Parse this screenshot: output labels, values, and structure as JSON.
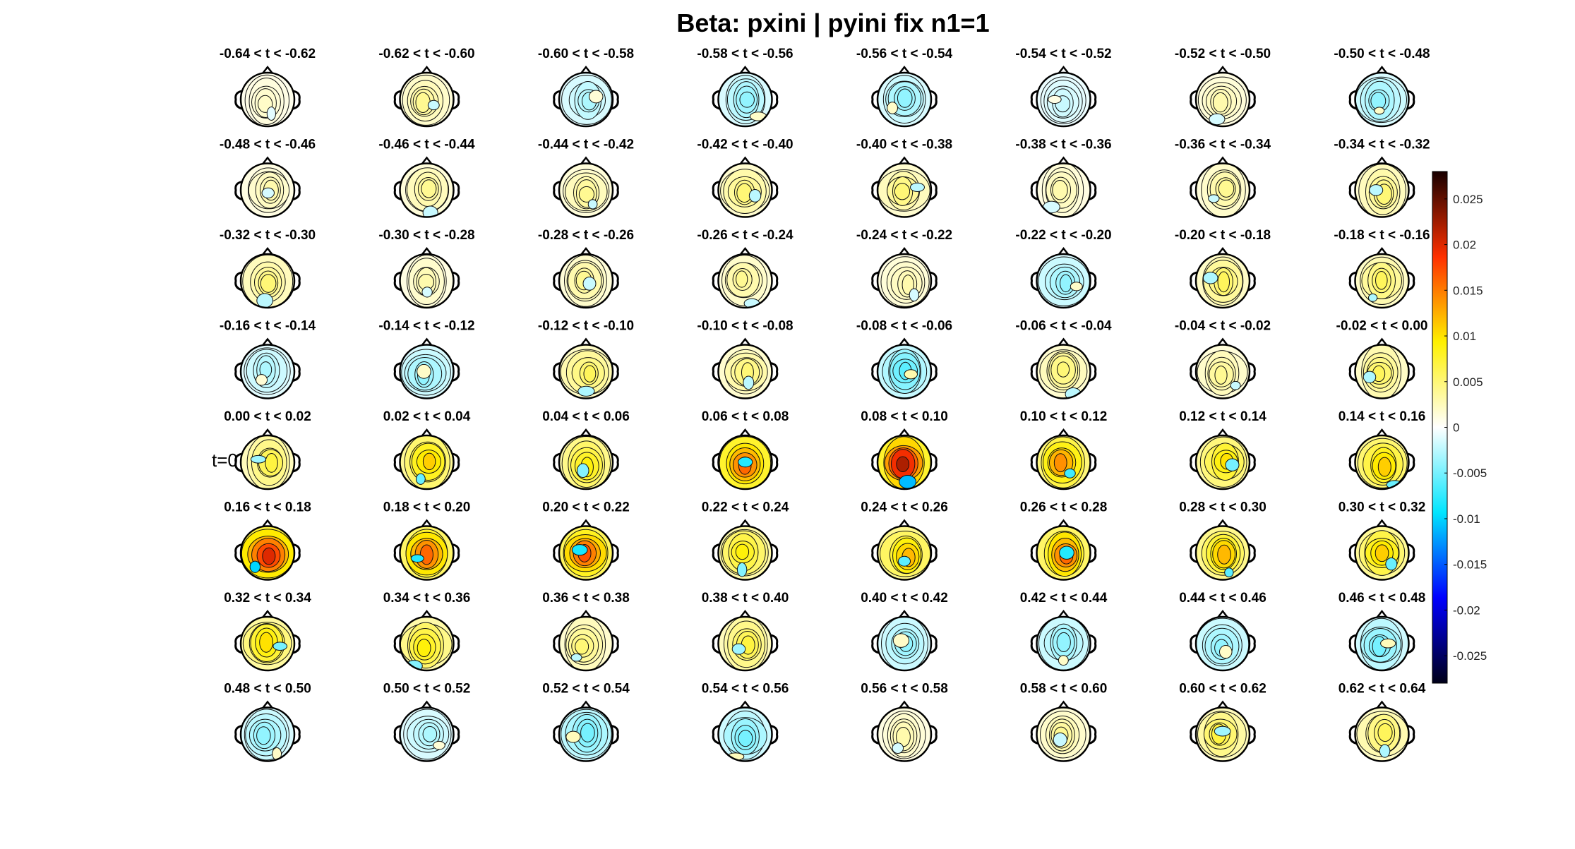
{
  "figure": {
    "title": "Beta: pxini | pyini fix  n1=1",
    "t0_label": "t=0"
  },
  "chart_data": {
    "type": "heatmap",
    "title": "Beta: pxini | pyini fix  n1=1",
    "grid_rows": 8,
    "grid_cols": 8,
    "panel_titles": [
      "-0.64 < t < -0.62",
      "-0.62 < t < -0.60",
      "-0.60 < t < -0.58",
      "-0.58 < t < -0.56",
      "-0.56 < t < -0.54",
      "-0.54 < t < -0.52",
      "-0.52 < t < -0.50",
      "-0.50 < t < -0.48",
      "-0.48 < t < -0.46",
      "-0.46 < t < -0.44",
      "-0.44 < t < -0.42",
      "-0.42 < t < -0.40",
      "-0.40 < t < -0.38",
      "-0.38 < t < -0.36",
      "-0.36 < t < -0.34",
      "-0.34 < t < -0.32",
      "-0.32 < t < -0.30",
      "-0.30 < t < -0.28",
      "-0.28 < t < -0.26",
      "-0.26 < t < -0.24",
      "-0.24 < t < -0.22",
      "-0.22 < t < -0.20",
      "-0.20 < t < -0.18",
      "-0.18 < t < -0.16",
      "-0.16 < t < -0.14",
      "-0.14 < t < -0.12",
      "-0.12 < t < -0.10",
      "-0.10 < t < -0.08",
      "-0.08 < t < -0.06",
      "-0.06 < t < -0.04",
      "-0.04 < t < -0.02",
      "-0.02 < t < 0.00",
      "0.00 < t < 0.02",
      "0.02 < t < 0.04",
      "0.04 < t < 0.06",
      "0.06 < t < 0.08",
      "0.08 < t < 0.10",
      "0.10 < t < 0.12",
      "0.12 < t < 0.14",
      "0.14 < t < 0.16",
      "0.16 < t < 0.18",
      "0.18 < t < 0.20",
      "0.20 < t < 0.22",
      "0.22 < t < 0.24",
      "0.24 < t < 0.26",
      "0.26 < t < 0.28",
      "0.28 < t < 0.30",
      "0.30 < t < 0.32",
      "0.32 < t < 0.34",
      "0.34 < t < 0.36",
      "0.36 < t < 0.38",
      "0.38 < t < 0.40",
      "0.40 < t < 0.42",
      "0.42 < t < 0.44",
      "0.44 < t < 0.46",
      "0.46 < t < 0.48",
      "0.48 < t < 0.50",
      "0.50 < t < 0.52",
      "0.52 < t < 0.54",
      "0.54 < t < 0.56",
      "0.56 < t < 0.58",
      "0.58 < t < 0.60",
      "0.60 < t < 0.62",
      "0.62 < t < 0.64"
    ],
    "peak_values": [
      0.002,
      0.004,
      -0.003,
      -0.004,
      -0.004,
      -0.002,
      0.003,
      -0.004,
      0.003,
      0.004,
      0.004,
      0.005,
      0.005,
      0.003,
      0.004,
      0.005,
      0.005,
      0.003,
      0.004,
      0.004,
      0.003,
      -0.004,
      0.006,
      0.006,
      -0.003,
      -0.004,
      0.006,
      0.005,
      -0.006,
      0.005,
      0.004,
      0.006,
      0.007,
      0.011,
      0.009,
      0.016,
      0.022,
      0.014,
      0.01,
      0.011,
      0.02,
      0.016,
      0.017,
      0.009,
      0.012,
      0.016,
      0.012,
      0.011,
      0.01,
      0.009,
      0.005,
      0.007,
      -0.004,
      -0.004,
      -0.004,
      -0.005,
      -0.004,
      -0.003,
      -0.005,
      -0.005,
      0.003,
      0.004,
      0.007,
      0.006
    ],
    "colorbar": {
      "range": [
        -0.028,
        0.028
      ],
      "ticks": [
        -0.025,
        -0.02,
        -0.015,
        -0.01,
        -0.005,
        0,
        0.005,
        0.01,
        0.015,
        0.02,
        0.025
      ],
      "tick_labels": [
        "-0.025",
        "-0.02",
        "-0.015",
        "-0.01",
        "-0.005",
        "0",
        "0.005",
        "0.01",
        "0.015",
        "0.02",
        "0.025"
      ],
      "colormap": [
        "#000018",
        "#0000ff",
        "#00e5ff",
        "#ffffff",
        "#fff000",
        "#ff3000",
        "#180000"
      ]
    },
    "t0_panel_index": 32
  }
}
